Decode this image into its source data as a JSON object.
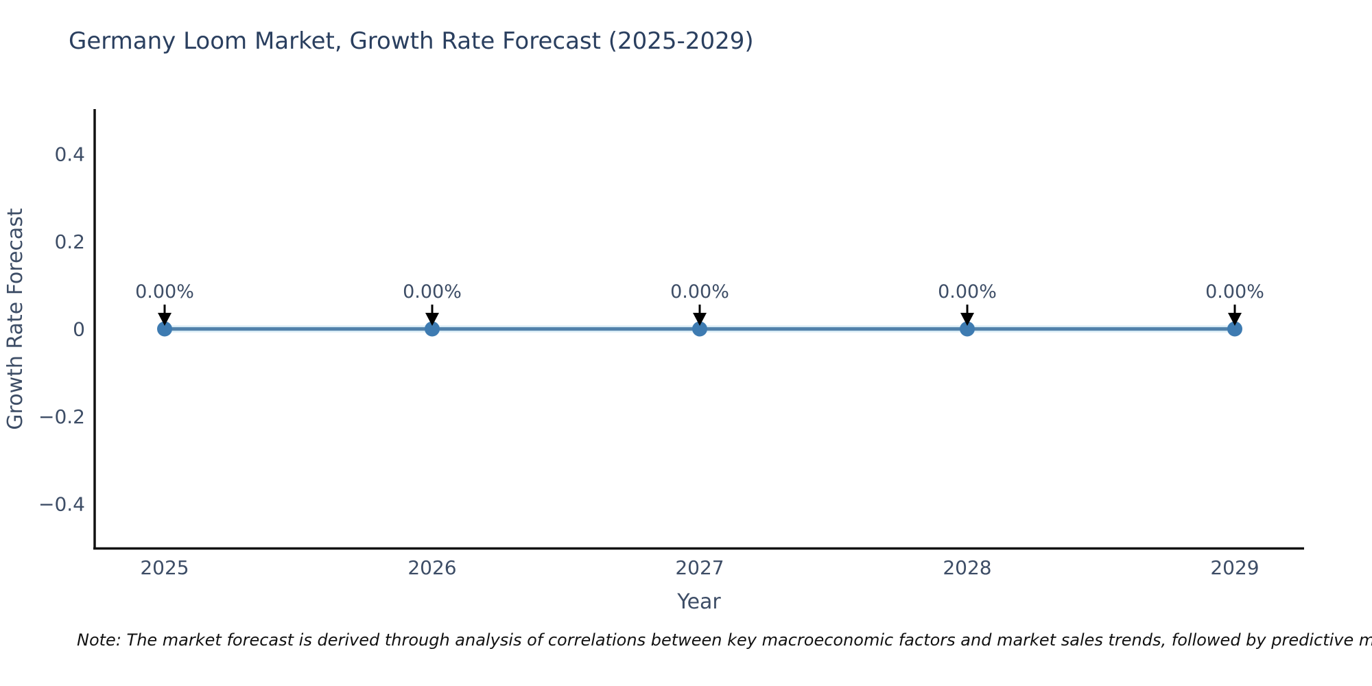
{
  "chart_data": {
    "type": "line",
    "title": "Germany Loom Market, Growth Rate Forecast (2025-2029)",
    "xlabel": "Year",
    "ylabel": "Growth Rate Forecast",
    "categories": [
      "2025",
      "2026",
      "2027",
      "2028",
      "2029"
    ],
    "series": [
      {
        "name": "Growth Rate Forecast",
        "values": [
          0,
          0,
          0,
          0,
          0
        ]
      }
    ],
    "point_labels": [
      "0.00%",
      "0.00%",
      "0.00%",
      "0.00%",
      "0.00%"
    ],
    "ylim": [
      -0.5,
      0.5
    ],
    "yticks": [
      {
        "value": 0.4,
        "label": "0.4"
      },
      {
        "value": 0.2,
        "label": "0.2"
      },
      {
        "value": 0,
        "label": "0"
      },
      {
        "value": -0.2,
        "label": "−0.2"
      },
      {
        "value": -0.4,
        "label": "−0.4"
      }
    ],
    "grid": false,
    "legend": "none",
    "colors": {
      "line": "#5282ab",
      "line_halo": "#d8ebf5",
      "marker": "#3e7bb1",
      "arrow": "#000000",
      "axis": "#111111",
      "title_text": "#2a3f5f",
      "tick_text": "#3d4d66"
    },
    "note": "Note: The market forecast is derived through analysis of correlations between key macroeconomic factors and market sales trends, followed by predictive modeling to project future sales."
  }
}
